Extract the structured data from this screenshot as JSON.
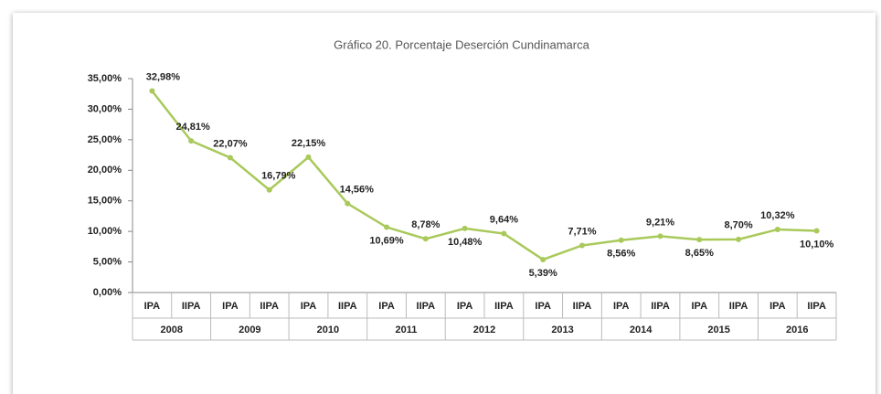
{
  "chart_data": {
    "type": "line",
    "title": "Gráfico 20. Porcentaje Deserción Cundinamarca",
    "categories": [
      "IPA",
      "IIPA",
      "IPA",
      "IIPA",
      "IPA",
      "IIPA",
      "IPA",
      "IIPA",
      "IPA",
      "IIPA",
      "IPA",
      "IIPA",
      "IPA",
      "IIPA",
      "IPA",
      "IIPA",
      "IPA",
      "IIPA"
    ],
    "years": [
      "2008",
      "2009",
      "2010",
      "2011",
      "2012",
      "2013",
      "2014",
      "2015",
      "2016"
    ],
    "series": [
      {
        "name": "Deserción",
        "color": "#a9c95b",
        "values": [
          32.98,
          24.81,
          22.07,
          16.79,
          22.15,
          14.56,
          10.69,
          8.78,
          10.48,
          9.64,
          5.39,
          7.71,
          8.56,
          9.21,
          8.65,
          8.7,
          10.32,
          10.1
        ],
        "value_labels": [
          "32,98%",
          "24,81%",
          "22,07%",
          "16,79%",
          "22,15%",
          "14,56%",
          "10,69%",
          "8,78%",
          "10,48%",
          "9,64%",
          "5,39%",
          "7,71%",
          "8,56%",
          "9,21%",
          "8,65%",
          "8,70%",
          "10,32%",
          "10,10%"
        ]
      }
    ],
    "ylim": [
      0,
      35
    ],
    "yticks": [
      {
        "value": 0,
        "label": "0,00%"
      },
      {
        "value": 5,
        "label": "5,00%"
      },
      {
        "value": 10,
        "label": "10,00%"
      },
      {
        "value": 15,
        "label": "15,00%"
      },
      {
        "value": 20,
        "label": "20,00%"
      },
      {
        "value": 25,
        "label": "25,00%"
      },
      {
        "value": 30,
        "label": "30,00%"
      },
      {
        "value": 35,
        "label": "35,00%"
      }
    ],
    "grid": false
  }
}
